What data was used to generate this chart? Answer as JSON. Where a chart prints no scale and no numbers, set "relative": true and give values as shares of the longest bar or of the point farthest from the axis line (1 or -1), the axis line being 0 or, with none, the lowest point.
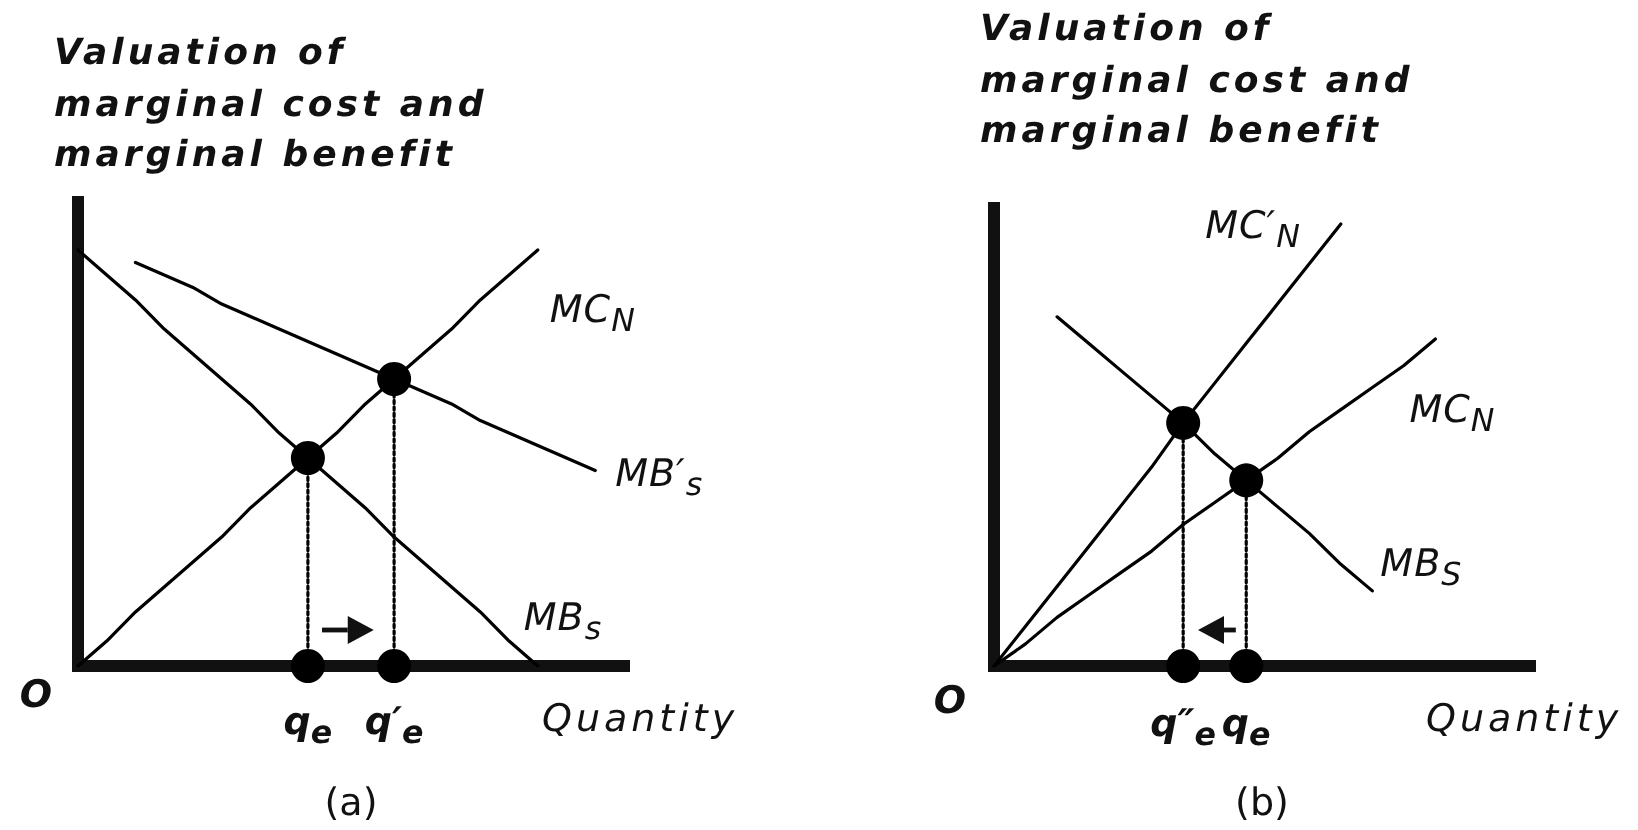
{
  "chart_data": [
    {
      "type": "line",
      "title": "(a)",
      "xlabel": "Quantity",
      "ylabel": "Valuation of marginal cost and marginal benefit",
      "relative": true,
      "categories": [
        null,
        null,
        null,
        null,
        null,
        null,
        null,
        null,
        "q$_{e}$",
        null,
        null,
        "q′$_{e}$",
        null,
        null,
        null,
        null,
        null,
        null,
        null,
        null
      ],
      "series": [
        {
          "name": "MC$_{N}$",
          "color": "#000000",
          "values": [
            0,
            0.06,
            0.13,
            0.19,
            0.25,
            0.31,
            0.38,
            0.44,
            0.5,
            0.56,
            0.63,
            0.69,
            0.75,
            0.81,
            0.88,
            0.94,
            1,
            null,
            null,
            null
          ]
        },
        {
          "name": "MB′$_{s}$",
          "color": "#000000",
          "values": [
            null,
            null,
            0.97,
            0.94,
            0.91,
            0.87,
            0.84,
            0.81,
            0.78,
            0.75,
            0.72,
            0.69,
            0.66,
            0.63,
            0.59,
            0.56,
            0.53,
            0.5,
            0.47,
            null
          ]
        },
        {
          "name": "MB$_{s}$",
          "color": "#000000",
          "values": [
            1,
            0.94,
            0.88,
            0.81,
            0.75,
            0.69,
            0.63,
            0.56,
            0.5,
            0.44,
            0.38,
            0.31,
            0.25,
            0.19,
            0.13,
            0.06,
            0,
            null,
            null,
            null
          ]
        },
        {
          "type": "line",
          "color": "#000000",
          "line_style": "dotted",
          "x": [
            "q$_{e}$",
            "q$_{e}$"
          ],
          "values": [
            0,
            0.5
          ]
        },
        {
          "type": "line",
          "color": "#000000",
          "line_style": "dotted",
          "x": [
            "q′$_{e}$",
            "q′$_{e}$"
          ],
          "values": [
            0,
            0.69
          ]
        },
        {
          "type": "scatter",
          "color": "#000000",
          "marker": "circle",
          "x": [
            "q$_{e}$",
            "q′$_{e}$",
            "q$_{e}$",
            "q′$_{e}$"
          ],
          "values": [
            0.5,
            0.69,
            0,
            0
          ]
        }
      ],
      "annotations": [
        "O"
      ]
    },
    {
      "type": "line",
      "title": "(b)",
      "xlabel": "Quantity",
      "ylabel": "Valuation of marginal cost and marginal benefit",
      "relative": true,
      "categories": [
        null,
        null,
        null,
        null,
        null,
        null,
        "q″$_{e}$",
        null,
        "q$_{e}$",
        null,
        null,
        null,
        null,
        null,
        null,
        null,
        null,
        null
      ],
      "series": [
        {
          "name": "MC′$_{N}$",
          "color": "#000000",
          "values": [
            0,
            0.09,
            0.18,
            0.27,
            0.36,
            0.45,
            0.55,
            0.64,
            0.73,
            0.82,
            0.91,
            1,
            null,
            null,
            null,
            null,
            null,
            null
          ]
        },
        {
          "name": "MC$_{N}$",
          "color": "#000000",
          "values": [
            0,
            0.05,
            0.11,
            0.16,
            0.21,
            0.26,
            0.32,
            0.37,
            0.42,
            0.47,
            0.53,
            0.58,
            0.63,
            0.68,
            0.74,
            null,
            null,
            null
          ]
        },
        {
          "name": "MB$_{S}$",
          "color": "#000000",
          "values": [
            null,
            null,
            0.79,
            0.73,
            0.67,
            0.61,
            0.55,
            0.48,
            0.42,
            0.36,
            0.3,
            0.23,
            0.17,
            null,
            null,
            null,
            null,
            null
          ]
        },
        {
          "type": "line",
          "color": "#000000",
          "line_style": "dotted",
          "x": [
            "q$_{e}$",
            "q$_{e}$"
          ],
          "values": [
            0,
            0.42
          ]
        },
        {
          "type": "line",
          "color": "#000000",
          "line_style": "dotted",
          "x": [
            "q″$_{e}$",
            "q″$_{e}$"
          ],
          "values": [
            0,
            0.55
          ]
        },
        {
          "type": "scatter",
          "color": "#000000",
          "marker": "circle",
          "x": [
            "q″$_{e}$",
            "q$_{e}$",
            "q″$_{e}$",
            "q$_{e}$"
          ],
          "values": [
            0.55,
            0.42,
            0,
            0
          ]
        }
      ],
      "annotations": [
        "O"
      ]
    }
  ]
}
